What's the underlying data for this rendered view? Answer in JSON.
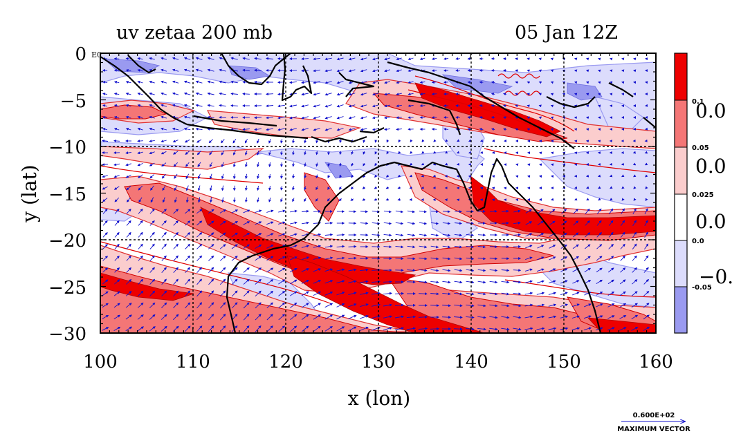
{
  "title_left": "uv zetaa 200 mb",
  "title_right": "05 Jan 12Z",
  "xlabel": "x (lon)",
  "ylabel": "y (lat)",
  "x_ticks": [
    "100",
    "110",
    "120",
    "130",
    "140",
    "150",
    "160"
  ],
  "y_ticks": [
    "0",
    "−5",
    "−10",
    "−15",
    "−20",
    "−25",
    "−30"
  ],
  "corner_label": "E0",
  "colorbar": {
    "big_labels": [
      "0.0",
      "0.0",
      "0.0",
      "−0."
    ],
    "small_labels": [
      "0.1",
      "0.05",
      "0.025",
      "0.0",
      "-0.05"
    ],
    "colors": [
      "#ee0000",
      "#f47676",
      "#fbcdcd",
      "#ffffff",
      "#dcdcfc",
      "#9a9af0"
    ]
  },
  "vector_key": {
    "value": "0.600E+02",
    "label": "MAXIMUM VECTOR"
  },
  "colors": {
    "strong_pos": "#ee0000",
    "mid_pos": "#f47676",
    "weak_pos": "#fbcdcd",
    "weak_neg": "#dcdcfc",
    "strong_neg": "#9a9af0",
    "vector": "#1010cc",
    "coast": "#000000"
  },
  "map": {
    "lon_range": [
      100,
      160
    ],
    "lat_range": [
      -30,
      0
    ],
    "grid": true,
    "vector_field": true
  }
}
